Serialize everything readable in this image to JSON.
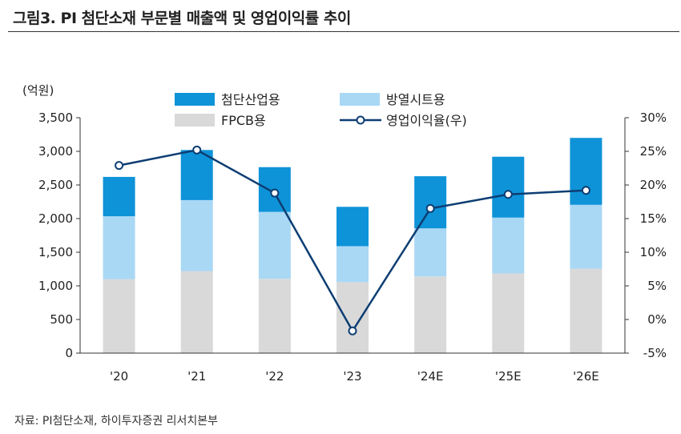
{
  "figure": {
    "title": "그림3.  PI 첨단소재 부문별 매출액 및 영업이익률 추이",
    "source": "자료: PI첨단소재, 하이투자증권 리서치본부"
  },
  "chart_data": {
    "type": "bar",
    "stacked": true,
    "categories": [
      "'20",
      "'21",
      "'22",
      "'23",
      "'24E",
      "'25E",
      "'26E"
    ],
    "series": [
      {
        "name": "FPCB용",
        "color": "#d9d9d9",
        "axis": "left",
        "values": [
          1100,
          1220,
          1105,
          1055,
          1140,
          1185,
          1255
        ]
      },
      {
        "name": "방열시트용",
        "color": "#a9d8f5",
        "axis": "left",
        "values": [
          935,
          1055,
          995,
          535,
          715,
          830,
          950
        ]
      },
      {
        "name": "첨단산업용",
        "color": "#0e93d8",
        "axis": "left",
        "values": [
          585,
          745,
          665,
          585,
          775,
          905,
          995
        ]
      }
    ],
    "line_series": {
      "name": "영업이익율(우)",
      "color": "#0d3e73",
      "axis": "right",
      "values": [
        22.9,
        25.2,
        18.8,
        -1.7,
        16.5,
        18.6,
        19.2
      ]
    },
    "y_left": {
      "unit_label": "(억원)",
      "min": 0,
      "max": 3500,
      "step": 500,
      "ticks": [
        "0",
        "500",
        "1,000",
        "1,500",
        "2,000",
        "2,500",
        "3,000",
        "3,500"
      ]
    },
    "y_right": {
      "min": -5,
      "max": 30,
      "step": 5,
      "ticks": [
        "-5%",
        "0%",
        "5%",
        "10%",
        "15%",
        "20%",
        "25%",
        "30%"
      ]
    },
    "legend": {
      "placement": "top",
      "order": [
        "첨단산업용",
        "방열시트용",
        "FPCB용",
        "영업이익율(우)"
      ]
    }
  }
}
